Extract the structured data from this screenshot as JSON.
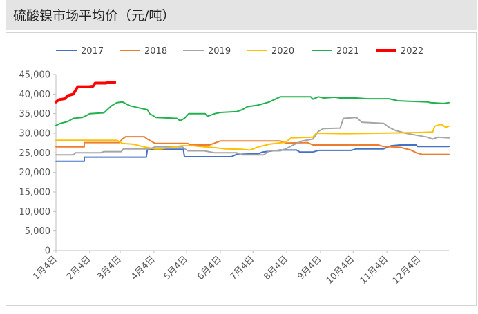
{
  "title": "硫酸镍市场平均价（元/吨）",
  "chart_data": {
    "type": "line",
    "title": "硫酸镍市场平均价（元/吨）",
    "ylim": [
      0,
      45000
    ],
    "yticks": [
      0,
      5000,
      10000,
      15000,
      20000,
      25000,
      30000,
      35000,
      40000,
      45000
    ],
    "ytick_labels": [
      "0",
      "5,000",
      "10,000",
      "15,000",
      "20,000",
      "25,000",
      "30,000",
      "35,000",
      "40,000",
      "45,000"
    ],
    "x_unit": "day_of_year",
    "xlim": [
      4,
      365
    ],
    "xticks": [
      4,
      35,
      63,
      94,
      124,
      155,
      185,
      216,
      247,
      277,
      308,
      338
    ],
    "xtick_labels": [
      "1月4日",
      "2月4日",
      "3月4日",
      "4月4日",
      "5月4日",
      "6月4日",
      "7月4日",
      "8月4日",
      "9月4日",
      "10月4日",
      "11月4日",
      "12月4日"
    ],
    "legend_position": "top",
    "grid": false,
    "series": [
      {
        "name": "2017",
        "color": "#4472c4",
        "width": 2,
        "points": [
          [
            4,
            22800
          ],
          [
            30,
            22800
          ],
          [
            30,
            23900
          ],
          [
            87,
            23900
          ],
          [
            88,
            25900
          ],
          [
            121,
            25900
          ],
          [
            122,
            24000
          ],
          [
            165,
            24000
          ],
          [
            170,
            24600
          ],
          [
            190,
            24800
          ],
          [
            194,
            25200
          ],
          [
            210,
            25700
          ],
          [
            225,
            25700
          ],
          [
            228,
            25200
          ],
          [
            240,
            25200
          ],
          [
            245,
            25600
          ],
          [
            275,
            25600
          ],
          [
            280,
            26000
          ],
          [
            305,
            26000
          ],
          [
            312,
            26800
          ],
          [
            320,
            27000
          ],
          [
            335,
            27000
          ],
          [
            336,
            26600
          ],
          [
            365,
            26600
          ]
        ]
      },
      {
        "name": "2018",
        "color": "#ed7d31",
        "width": 2,
        "points": [
          [
            4,
            26500
          ],
          [
            30,
            26500
          ],
          [
            30,
            27600
          ],
          [
            62,
            27600
          ],
          [
            65,
            28500
          ],
          [
            68,
            29100
          ],
          [
            85,
            29100
          ],
          [
            88,
            28500
          ],
          [
            95,
            27400
          ],
          [
            125,
            27400
          ],
          [
            127,
            27000
          ],
          [
            145,
            27000
          ],
          [
            150,
            27500
          ],
          [
            155,
            28000
          ],
          [
            210,
            28000
          ],
          [
            215,
            27500
          ],
          [
            235,
            27600
          ],
          [
            240,
            27000
          ],
          [
            300,
            27000
          ],
          [
            305,
            26600
          ],
          [
            320,
            26400
          ],
          [
            330,
            25700
          ],
          [
            335,
            25000
          ],
          [
            340,
            24600
          ],
          [
            365,
            24600
          ]
        ]
      },
      {
        "name": "2019",
        "color": "#a5a5a5",
        "width": 2,
        "points": [
          [
            4,
            24500
          ],
          [
            20,
            24500
          ],
          [
            22,
            25000
          ],
          [
            45,
            25000
          ],
          [
            48,
            25300
          ],
          [
            64,
            25300
          ],
          [
            66,
            26000
          ],
          [
            90,
            26000
          ],
          [
            95,
            26500
          ],
          [
            120,
            26500
          ],
          [
            125,
            25500
          ],
          [
            140,
            25500
          ],
          [
            150,
            25000
          ],
          [
            170,
            25000
          ],
          [
            175,
            24500
          ],
          [
            195,
            24500
          ],
          [
            200,
            25500
          ],
          [
            210,
            25500
          ],
          [
            215,
            26000
          ],
          [
            222,
            27000
          ],
          [
            230,
            28000
          ],
          [
            240,
            28500
          ],
          [
            245,
            30500
          ],
          [
            250,
            31200
          ],
          [
            265,
            31300
          ],
          [
            268,
            33800
          ],
          [
            280,
            34000
          ],
          [
            285,
            32800
          ],
          [
            305,
            32500
          ],
          [
            310,
            31500
          ],
          [
            315,
            30800
          ],
          [
            325,
            30000
          ],
          [
            335,
            29500
          ],
          [
            345,
            29000
          ],
          [
            350,
            28500
          ],
          [
            355,
            29000
          ],
          [
            365,
            28800
          ]
        ]
      },
      {
        "name": "2020",
        "color": "#ffc000",
        "width": 2,
        "points": [
          [
            4,
            28200
          ],
          [
            60,
            28200
          ],
          [
            65,
            27400
          ],
          [
            75,
            27200
          ],
          [
            85,
            26500
          ],
          [
            95,
            26000
          ],
          [
            100,
            26000
          ],
          [
            110,
            26400
          ],
          [
            120,
            26800
          ],
          [
            130,
            26800
          ],
          [
            140,
            26500
          ],
          [
            150,
            26300
          ],
          [
            160,
            26000
          ],
          [
            175,
            25900
          ],
          [
            182,
            25700
          ],
          [
            190,
            26500
          ],
          [
            200,
            27200
          ],
          [
            215,
            27700
          ],
          [
            220,
            28800
          ],
          [
            240,
            29000
          ],
          [
            243,
            30000
          ],
          [
            270,
            29900
          ],
          [
            300,
            30000
          ],
          [
            340,
            30200
          ],
          [
            350,
            30300
          ],
          [
            352,
            31800
          ],
          [
            358,
            32300
          ],
          [
            362,
            31500
          ],
          [
            365,
            31800
          ]
        ]
      },
      {
        "name": "2021",
        "color": "#21b14e",
        "width": 2,
        "points": [
          [
            4,
            32000
          ],
          [
            8,
            32500
          ],
          [
            15,
            33000
          ],
          [
            20,
            33800
          ],
          [
            28,
            34000
          ],
          [
            32,
            34500
          ],
          [
            35,
            35000
          ],
          [
            48,
            35200
          ],
          [
            55,
            37000
          ],
          [
            60,
            37800
          ],
          [
            65,
            38000
          ],
          [
            72,
            37000
          ],
          [
            80,
            36500
          ],
          [
            88,
            36000
          ],
          [
            90,
            35000
          ],
          [
            96,
            34000
          ],
          [
            115,
            33800
          ],
          [
            118,
            33200
          ],
          [
            122,
            33800
          ],
          [
            126,
            35000
          ],
          [
            141,
            35000
          ],
          [
            143,
            34300
          ],
          [
            150,
            35000
          ],
          [
            155,
            35300
          ],
          [
            170,
            35500
          ],
          [
            175,
            36000
          ],
          [
            180,
            36800
          ],
          [
            190,
            37200
          ],
          [
            200,
            38000
          ],
          [
            210,
            39300
          ],
          [
            238,
            39300
          ],
          [
            240,
            38700
          ],
          [
            245,
            39300
          ],
          [
            250,
            39000
          ],
          [
            260,
            39200
          ],
          [
            265,
            39000
          ],
          [
            280,
            39000
          ],
          [
            290,
            38800
          ],
          [
            310,
            38800
          ],
          [
            318,
            38300
          ],
          [
            325,
            38200
          ],
          [
            345,
            38000
          ],
          [
            348,
            37800
          ],
          [
            360,
            37600
          ],
          [
            365,
            37800
          ]
        ]
      },
      {
        "name": "2022",
        "color": "#ff0000",
        "width": 4,
        "points": [
          [
            4,
            38000
          ],
          [
            7,
            38600
          ],
          [
            12,
            38800
          ],
          [
            15,
            39600
          ],
          [
            20,
            40000
          ],
          [
            24,
            41900
          ],
          [
            34,
            41900
          ],
          [
            38,
            42000
          ],
          [
            40,
            42800
          ],
          [
            50,
            42800
          ],
          [
            52,
            43000
          ],
          [
            58,
            43000
          ]
        ]
      }
    ]
  }
}
